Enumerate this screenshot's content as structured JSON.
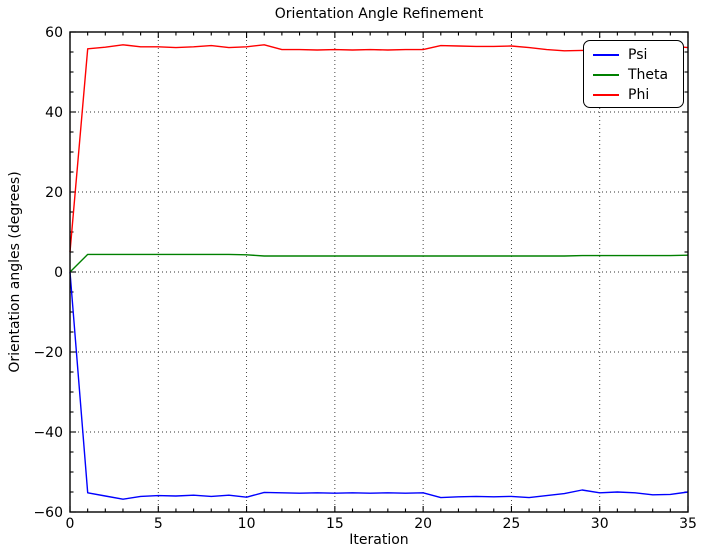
{
  "chart_data": {
    "type": "line",
    "title": "Orientation Angle Refinement",
    "xlabel": "Iteration",
    "ylabel": "Orientation angles (degrees)",
    "xlim": [
      0,
      35
    ],
    "ylim": [
      -60,
      60
    ],
    "x_major_ticks": [
      0,
      5,
      10,
      15,
      20,
      25,
      30,
      35
    ],
    "x_tick_labels": [
      "0",
      "5",
      "10",
      "15",
      "20",
      "25",
      "30",
      "35"
    ],
    "y_major_ticks": [
      -60,
      -40,
      -20,
      0,
      20,
      40,
      60
    ],
    "y_tick_labels": [
      "−60",
      "−40",
      "−20",
      "0",
      "20",
      "40",
      "60"
    ],
    "x_minor_step": 1,
    "y_minor_step": 5,
    "grid": "dotted black on major ticks",
    "legend_position": "upper right",
    "background_color": "#ffffff",
    "axis_color": "#000000",
    "x": [
      0,
      1,
      2,
      3,
      4,
      5,
      6,
      7,
      8,
      9,
      10,
      11,
      12,
      13,
      14,
      15,
      16,
      17,
      18,
      19,
      20,
      21,
      22,
      23,
      24,
      25,
      26,
      27,
      28,
      29,
      30,
      31,
      32,
      33,
      34,
      35
    ],
    "series": [
      {
        "name": "Psi",
        "color": "#0000ff",
        "values": [
          0,
          -55.2,
          -56.0,
          -56.8,
          -56.1,
          -55.9,
          -56.0,
          -55.8,
          -56.1,
          -55.8,
          -56.3,
          -55.1,
          -55.2,
          -55.3,
          -55.2,
          -55.3,
          -55.2,
          -55.3,
          -55.2,
          -55.3,
          -55.2,
          -56.4,
          -56.2,
          -56.1,
          -56.2,
          -56.1,
          -56.4,
          -55.9,
          -55.4,
          -54.5,
          -55.2,
          -55.0,
          -55.2,
          -55.7,
          -55.6,
          -55.0
        ]
      },
      {
        "name": "Theta",
        "color": "#008000",
        "values": [
          0,
          4.4,
          4.4,
          4.4,
          4.4,
          4.4,
          4.4,
          4.4,
          4.4,
          4.4,
          4.3,
          4.0,
          4.0,
          4.0,
          4.0,
          4.0,
          4.0,
          4.0,
          4.0,
          4.0,
          4.0,
          4.0,
          4.0,
          4.0,
          4.0,
          4.0,
          4.0,
          4.0,
          4.0,
          4.1,
          4.1,
          4.1,
          4.1,
          4.1,
          4.1,
          4.2
        ]
      },
      {
        "name": "Phi",
        "color": "#ff0000",
        "values": [
          5,
          55.8,
          56.2,
          56.8,
          56.3,
          56.3,
          56.1,
          56.3,
          56.6,
          56.1,
          56.3,
          56.8,
          55.6,
          55.6,
          55.5,
          55.6,
          55.5,
          55.6,
          55.5,
          55.6,
          55.6,
          56.6,
          56.5,
          56.4,
          56.4,
          56.5,
          56.1,
          55.6,
          55.3,
          55.4,
          55.4,
          55.5,
          55.8,
          56.0,
          56.5,
          56.1
        ]
      }
    ]
  }
}
